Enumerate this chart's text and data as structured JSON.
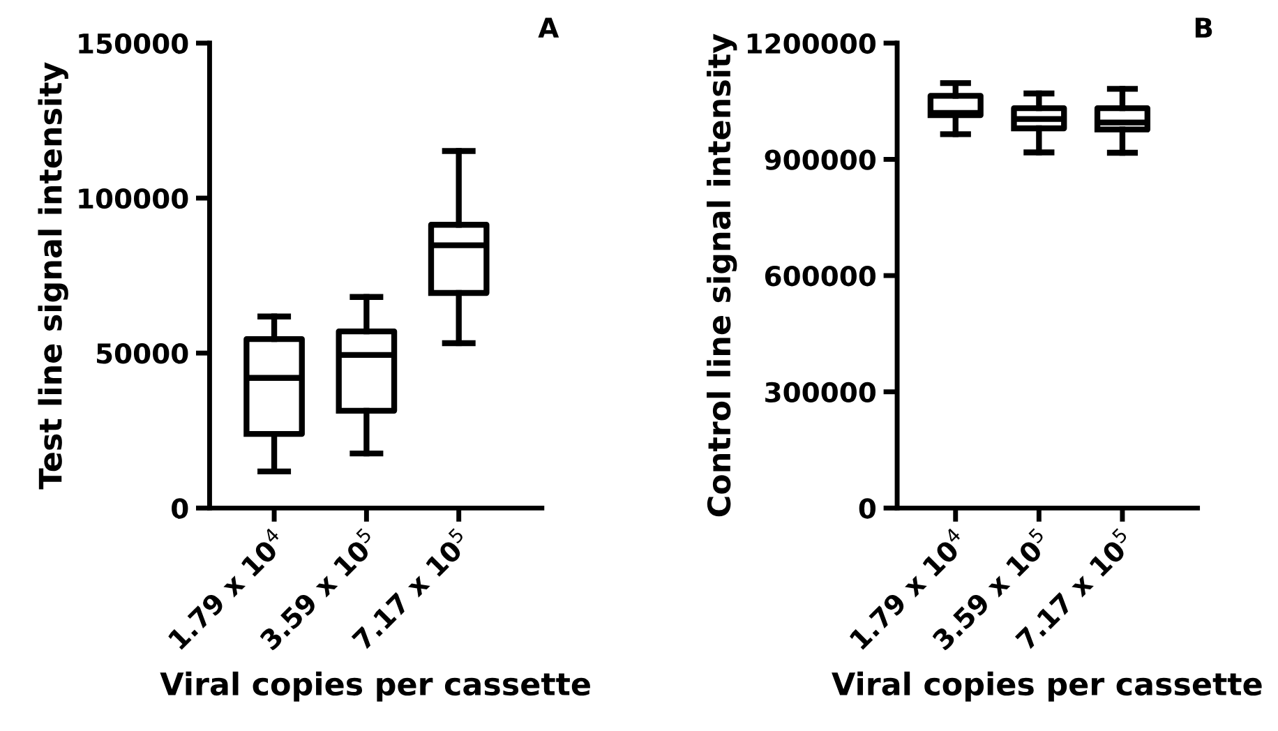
{
  "chart_data": [
    {
      "type": "box",
      "categories": [
        "1.79 x 10$^{4}$",
        "3.59 x 10$^{5}$",
        "7.17 x 10$^{5}$"
      ],
      "xlabel": "Viral copies per cassette",
      "ylabel": "Test line signal intensity",
      "annotations": [
        "A"
      ],
      "ylim": [
        0,
        150000
      ],
      "yticks": [
        0,
        50000,
        100000,
        150000
      ],
      "grid": false,
      "legend": false,
      "series": [
        {
          "color": "#000000",
          "boxes": [
            {
              "low": 11800,
              "q1": 23900,
              "median": 42000,
              "q3": 54500,
              "high": 61800
            },
            {
              "low": 17600,
              "q1": 31400,
              "median": 49400,
              "q3": 57000,
              "high": 68100
            },
            {
              "low": 53200,
              "q1": 69400,
              "median": 84800,
              "q3": 91400,
              "high": 115200
            }
          ]
        }
      ]
    },
    {
      "type": "box",
      "categories": [
        "1.79 x 10$^{4}$",
        "3.59 x 10$^{5}$",
        "7.17 x 10$^{5}$"
      ],
      "xlabel": "Viral copies per cassette",
      "ylabel": "Control line signal intensity",
      "annotations": [
        "B"
      ],
      "ylim": [
        0,
        1200000
      ],
      "yticks": [
        0,
        300000,
        600000,
        900000,
        1200000
      ],
      "grid": false,
      "legend": false,
      "series": [
        {
          "color": "#000000",
          "boxes": [
            {
              "low": 965000,
              "q1": 1014000,
              "median": 1020000,
              "q3": 1064000,
              "high": 1097000
            },
            {
              "low": 918000,
              "q1": 980000,
              "median": 1004000,
              "q3": 1032000,
              "high": 1070000
            },
            {
              "low": 917000,
              "q1": 977000,
              "median": 995000,
              "q3": 1032000,
              "high": 1082000
            }
          ]
        }
      ]
    }
  ]
}
